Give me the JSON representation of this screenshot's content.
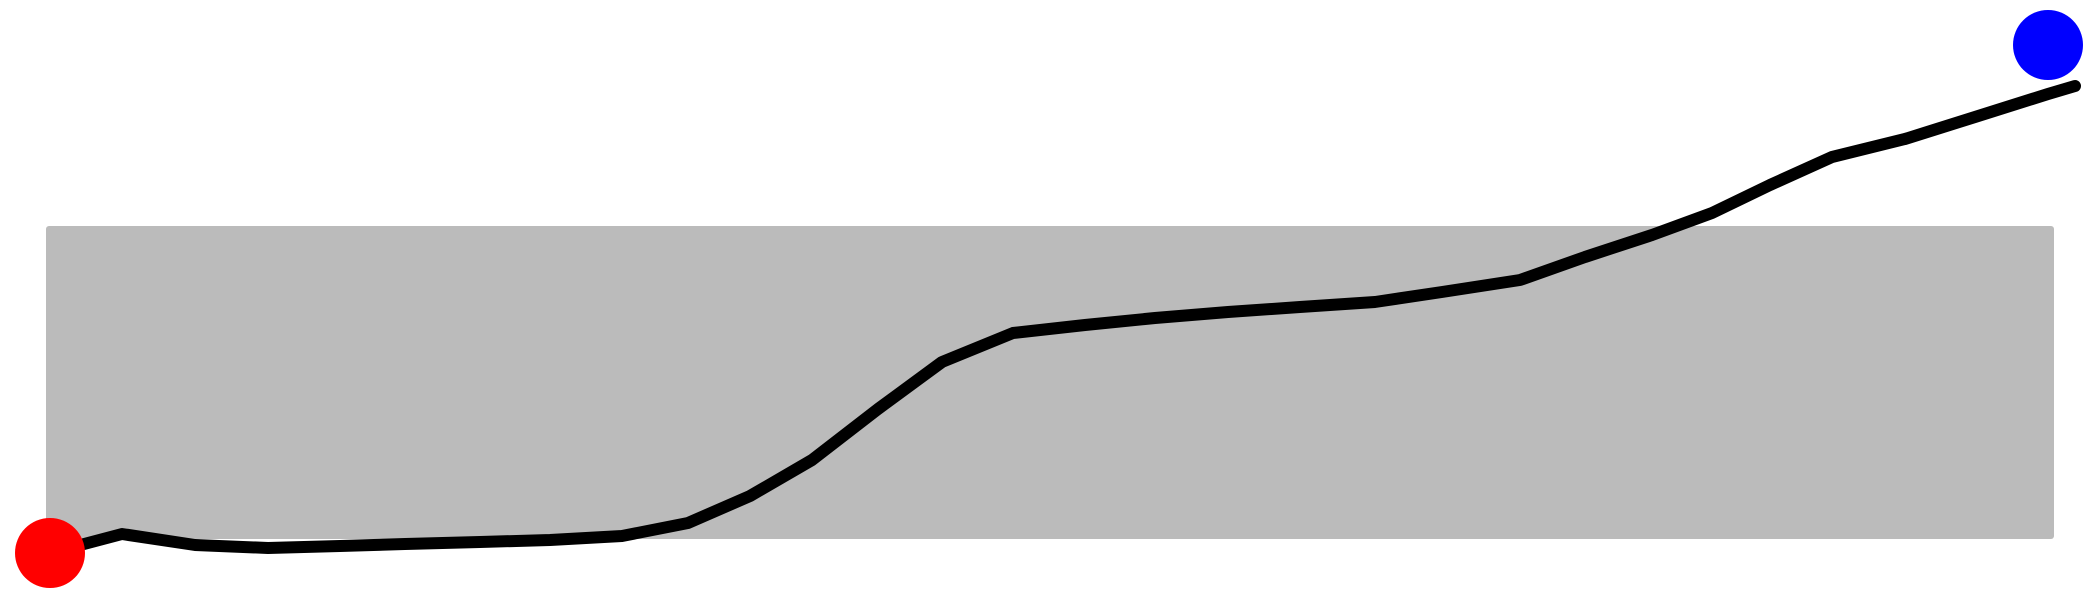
{
  "colors": {
    "background": "#ffffff",
    "band_fill": "#bbbbbb",
    "path_stroke": "#000000",
    "start_marker": "#ff0000",
    "end_marker": "#0000ff"
  },
  "band": {
    "shape": "rounded-rectangle"
  },
  "path": {
    "shape": "polyline"
  },
  "markers": {
    "start": {
      "shape": "circle",
      "icon": "start-dot-icon"
    },
    "end": {
      "shape": "circle",
      "icon": "end-dot-icon"
    }
  }
}
